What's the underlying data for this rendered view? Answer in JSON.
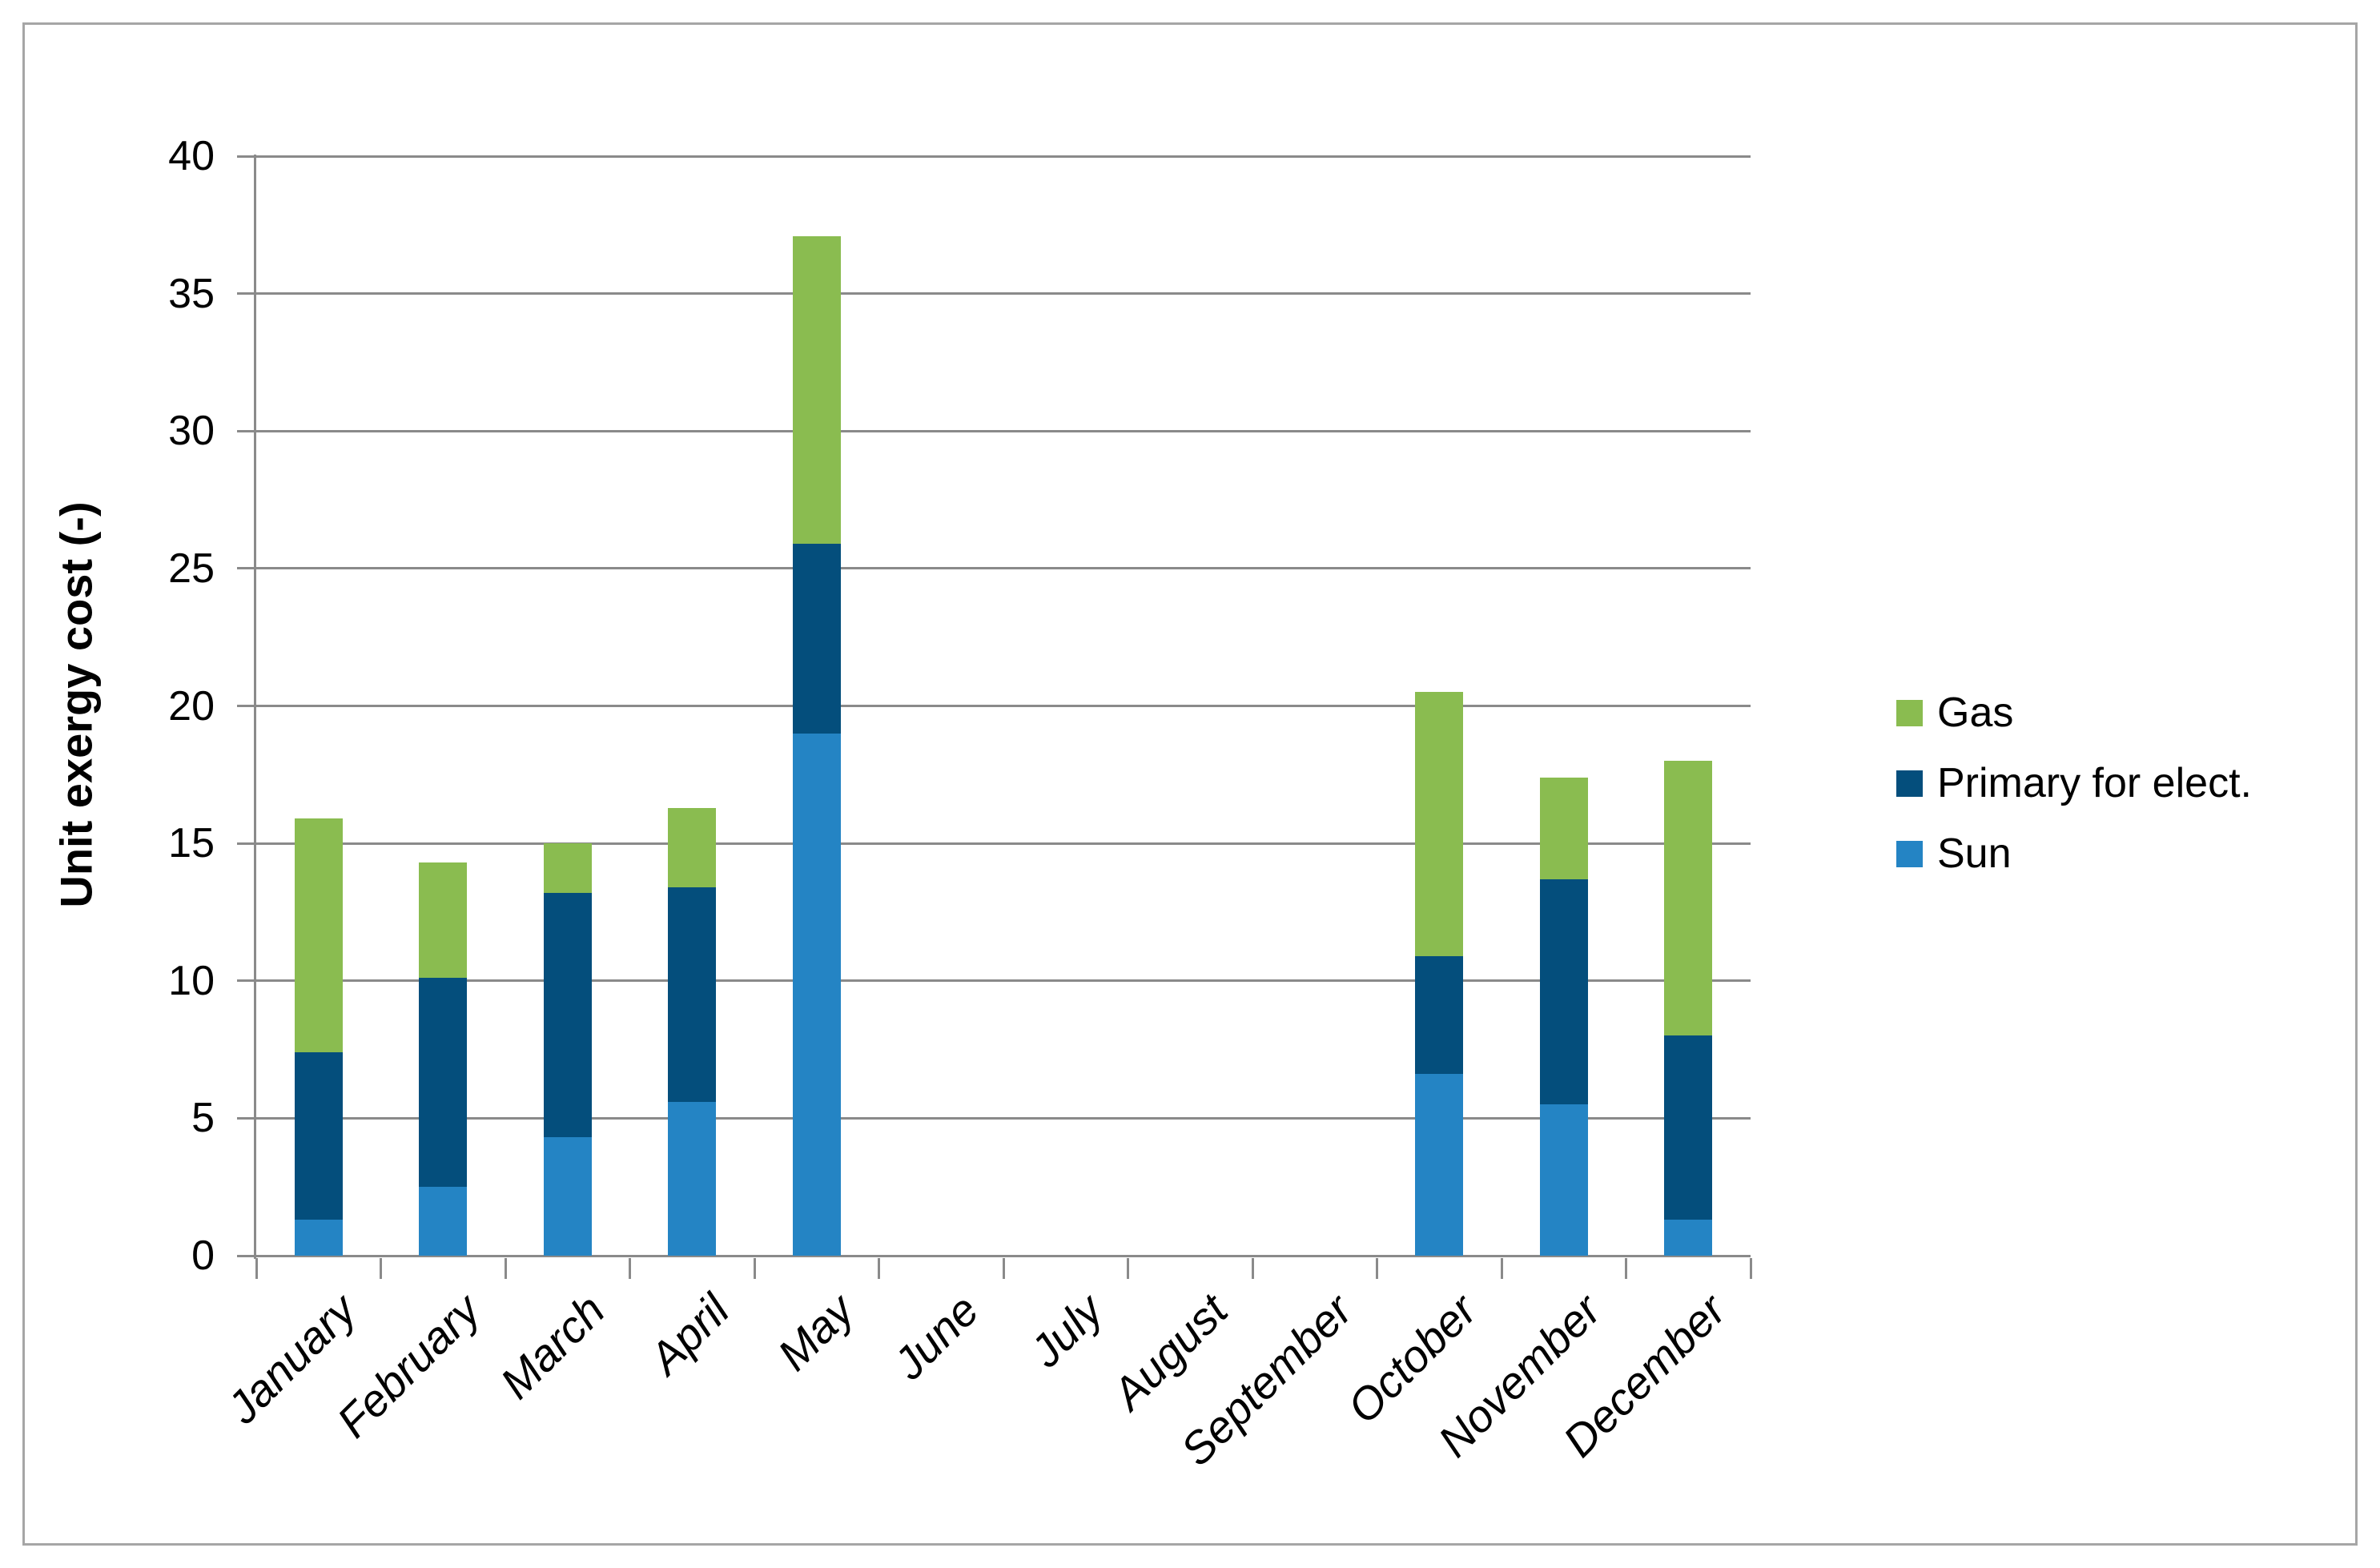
{
  "chart_data": {
    "type": "bar",
    "stacked": true,
    "title": "",
    "xlabel": "",
    "ylabel": "Unit exergy cost (-)",
    "categories": [
      "January",
      "February",
      "March",
      "April",
      "May",
      "June",
      "July",
      "August",
      "September",
      "October",
      "November",
      "December"
    ],
    "series": [
      {
        "name": "Sun",
        "color": "#2484C4",
        "values": [
          1.3,
          2.5,
          4.3,
          5.6,
          19.0,
          0,
          0,
          0,
          0,
          6.6,
          5.5,
          1.3
        ]
      },
      {
        "name": "Primary for elect.",
        "color": "#044E7C",
        "values": [
          6.1,
          7.6,
          8.9,
          7.8,
          6.9,
          0,
          0,
          0,
          0,
          4.3,
          8.2,
          6.7
        ]
      },
      {
        "name": "Gas",
        "color": "#8ABC50",
        "values": [
          8.5,
          4.2,
          1.8,
          2.9,
          11.2,
          0,
          0,
          0,
          0,
          9.6,
          3.7,
          10.0
        ]
      }
    ],
    "totals": [
      15.9,
      14.3,
      15.0,
      16.3,
      37.1,
      0,
      0,
      0,
      0,
      20.5,
      17.4,
      18.0
    ],
    "ylim": [
      0,
      40
    ],
    "yticks": [
      0,
      5,
      10,
      15,
      20,
      25,
      30,
      35,
      40
    ],
    "grid": true,
    "legend_position": "right",
    "legend_order": [
      "Gas",
      "Primary for elect.",
      "Sun"
    ]
  },
  "colors": {
    "grid": "#8A8A8A",
    "axis": "#8A8A8A",
    "frame_border": "#A6A6A6",
    "text": "#000000",
    "background": "#FFFFFF"
  }
}
